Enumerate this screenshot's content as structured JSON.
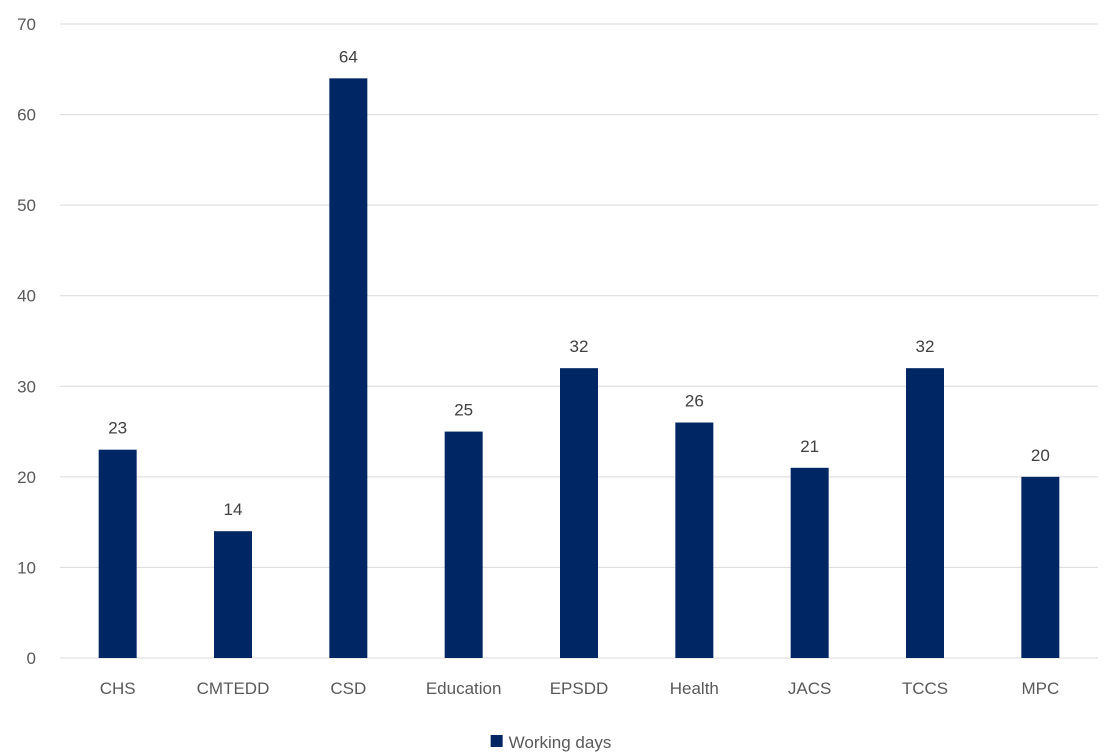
{
  "chart_data": {
    "type": "bar",
    "categories": [
      "CHS",
      "CMTEDD",
      "CSD",
      "Education",
      "EPSDD",
      "Health",
      "JACS",
      "TCCS",
      "MPC"
    ],
    "series": [
      {
        "name": "Working days",
        "values": [
          23,
          14,
          64,
          25,
          32,
          26,
          21,
          32,
          20
        ],
        "color": "#002664"
      }
    ],
    "ylim": [
      0,
      70
    ],
    "yticks": [
      0,
      10,
      20,
      30,
      40,
      50,
      60,
      70
    ],
    "grid": true,
    "legend": "bottom",
    "data_labels": true
  }
}
